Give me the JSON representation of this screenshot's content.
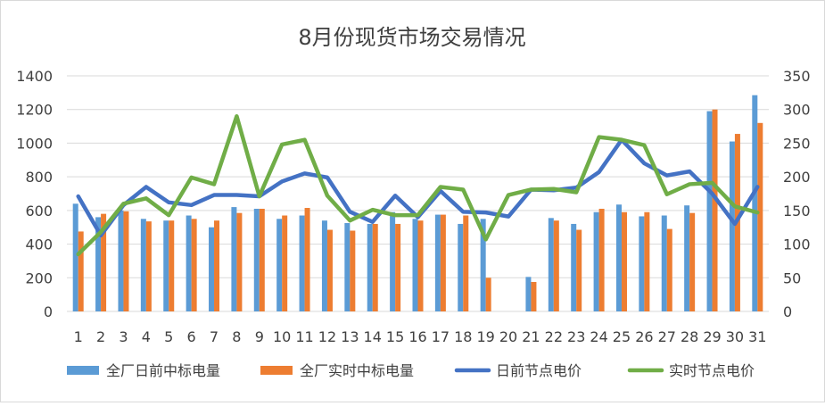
{
  "chart_data": {
    "type": "bar",
    "title": "8月份现货市场交易情况",
    "categories": [
      "1",
      "2",
      "3",
      "4",
      "5",
      "6",
      "7",
      "8",
      "9",
      "10",
      "11",
      "12",
      "13",
      "14",
      "15",
      "16",
      "17",
      "18",
      "19",
      "20",
      "21",
      "22",
      "23",
      "24",
      "25",
      "26",
      "27",
      "28",
      "29",
      "30",
      "31"
    ],
    "y_left": {
      "ylim": [
        0,
        1400
      ],
      "ticks": [
        "0",
        "200",
        "400",
        "600",
        "800",
        "1000",
        "1200",
        "1400"
      ]
    },
    "y_right": {
      "ylim": [
        0,
        350
      ],
      "ticks": [
        "0",
        "50",
        "100",
        "150",
        "200",
        "250",
        "300",
        "350"
      ]
    },
    "grid": true,
    "legend_position": "bottom",
    "series": [
      {
        "name": "全厂日前中标电量",
        "kind": "bar",
        "axis": "left",
        "color": "#5B9BD5",
        "values": [
          640,
          560,
          600,
          550,
          540,
          570,
          500,
          620,
          610,
          550,
          570,
          540,
          525,
          520,
          590,
          550,
          575,
          520,
          550,
          0,
          205,
          555,
          520,
          590,
          635,
          565,
          570,
          630,
          1190,
          1010,
          1285
        ]
      },
      {
        "name": "全厂实时中标电量",
        "kind": "bar",
        "axis": "left",
        "color": "#ED7D31",
        "values": [
          475,
          580,
          595,
          535,
          540,
          550,
          540,
          585,
          610,
          570,
          615,
          485,
          480,
          520,
          520,
          540,
          575,
          570,
          200,
          0,
          175,
          540,
          485,
          610,
          590,
          590,
          490,
          585,
          1200,
          1055,
          1120
        ]
      },
      {
        "name": "日前节点电价",
        "kind": "line",
        "axis": "right",
        "color": "#4472C4",
        "values": [
          171,
          113,
          158,
          185,
          162,
          158,
          173,
          173,
          171,
          193,
          205,
          199,
          148,
          133,
          172,
          140,
          179,
          148,
          147,
          141,
          181,
          180,
          184,
          207,
          255,
          220,
          202,
          208,
          175,
          130,
          185
        ]
      },
      {
        "name": "实时节点电价",
        "kind": "line",
        "axis": "right",
        "color": "#70AD47",
        "values": [
          85,
          118,
          160,
          168,
          143,
          199,
          189,
          290,
          171,
          248,
          255,
          172,
          135,
          151,
          143,
          143,
          185,
          181,
          107,
          173,
          181,
          182,
          177,
          259,
          255,
          247,
          174,
          189,
          191,
          156,
          147
        ]
      }
    ]
  }
}
